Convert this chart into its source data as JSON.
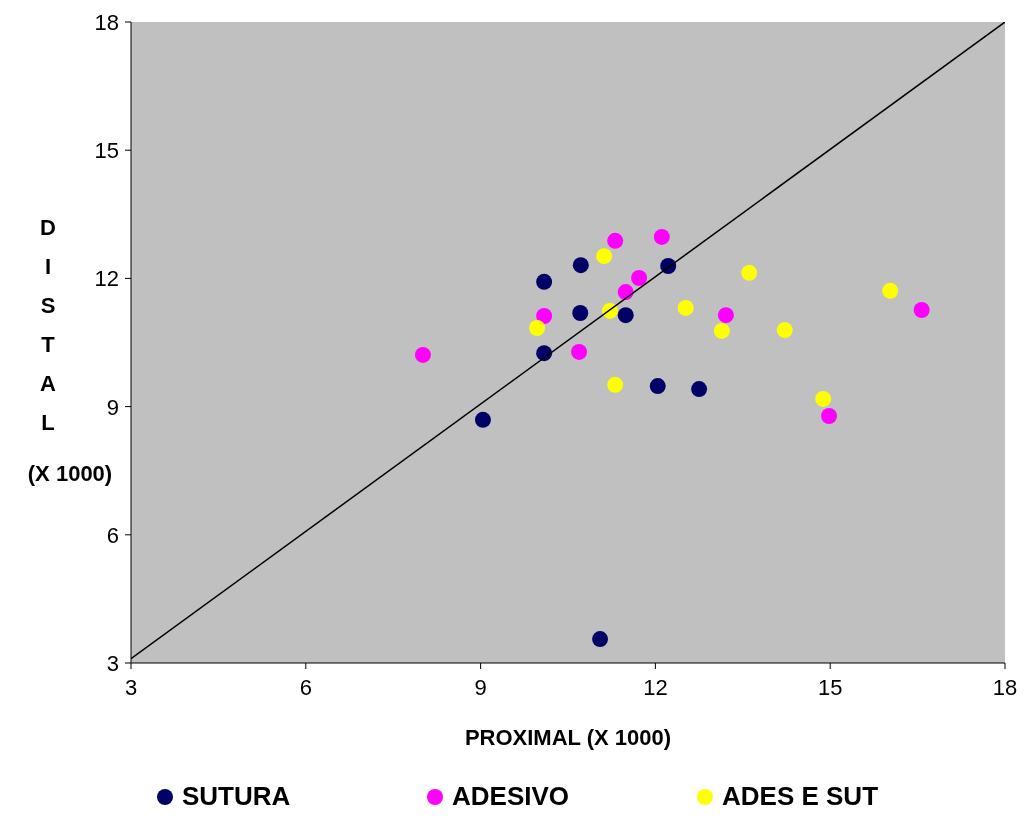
{
  "chart_data": {
    "type": "scatter",
    "xlabel": "PROXIMAL (X 1000)",
    "ylabel": "DISTAL (X 1000)",
    "xlim": [
      3,
      18
    ],
    "ylim": [
      3,
      18
    ],
    "xticks": [
      3,
      6,
      9,
      12,
      15,
      18
    ],
    "yticks": [
      3,
      6,
      9,
      12,
      15,
      18
    ],
    "grid": false,
    "legend": "bottom",
    "marker": "circle",
    "series": [
      {
        "name": "SUTURA",
        "color": "#000066",
        "x": [
          10.09,
          10.72,
          12.22,
          10.71,
          11.49,
          10.09,
          12.04,
          12.75,
          9.04,
          11.05
        ],
        "values": [
          11.92,
          12.31,
          12.29,
          11.19,
          11.14,
          10.25,
          9.48,
          9.41,
          8.69,
          3.56
        ]
      },
      {
        "name": "ADESIVO",
        "color": "#ff00ff",
        "x": [
          11.31,
          12.11,
          11.72,
          11.49,
          10.09,
          13.21,
          16.57,
          8.01,
          10.69,
          14.98
        ],
        "values": [
          12.88,
          12.97,
          12.01,
          11.68,
          11.12,
          11.14,
          11.26,
          10.21,
          10.28,
          8.78
        ]
      },
      {
        "name": "ADES E SUT",
        "color": "#ffff00",
        "x": [
          11.12,
          13.61,
          11.22,
          12.52,
          9.97,
          13.14,
          14.22,
          16.03,
          11.31,
          14.88
        ],
        "values": [
          12.52,
          12.13,
          11.24,
          11.31,
          10.84,
          10.77,
          10.79,
          11.71,
          9.51,
          9.18
        ]
      },
      {
        "type": "line",
        "color": "#000000",
        "x": [
          3,
          18
        ],
        "values": [
          3.1,
          18
        ],
        "line_style": "solid",
        "marker": "none"
      }
    ]
  }
}
